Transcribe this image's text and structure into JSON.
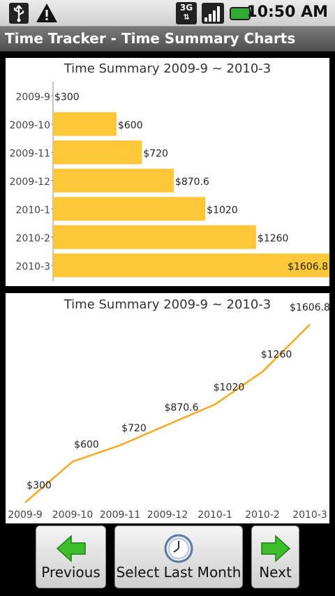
{
  "status_bar": {
    "time": "10:50 AM",
    "network_label": "3G",
    "icons": [
      "usb-icon",
      "warning-icon",
      "network-3g-icon",
      "signal-icon",
      "battery-icon"
    ]
  },
  "app": {
    "title": "Time Tracker - Time Summary Charts"
  },
  "colors": {
    "bar": "#FFC637",
    "line": "#F7A81F",
    "title_bar": "#606060"
  },
  "chart_data": [
    {
      "type": "bar",
      "orientation": "horizontal",
      "title": "Time Summary 2009-9 ~ 2010-3",
      "categories": [
        "2009-9",
        "2009-10",
        "2009-11",
        "2009-12",
        "2010-1",
        "2010-2",
        "2010-3"
      ],
      "values": [
        300,
        600,
        720,
        870.6,
        1020,
        1260,
        1606.8
      ],
      "data_labels": [
        "$300",
        "$600",
        "$720",
        "$870.6",
        "$1020",
        "$1260",
        "$1606.8"
      ],
      "xlim": [
        300,
        1606.8
      ],
      "grid": false
    },
    {
      "type": "line",
      "title": "Time Summary 2009-9 ~ 2010-3",
      "categories": [
        "2009-9",
        "2009-10",
        "2009-11",
        "2009-12",
        "2010-1",
        "2010-2",
        "2010-3"
      ],
      "values": [
        300,
        600,
        720,
        870.6,
        1020,
        1260,
        1606.8
      ],
      "data_labels": [
        "$300",
        "$600",
        "$720",
        "$870.6",
        "$1020",
        "$1260",
        "$1606.8"
      ],
      "grid": false
    }
  ],
  "buttons": {
    "previous": "Previous",
    "select_last_month": "Select Last Month",
    "next": "Next"
  }
}
